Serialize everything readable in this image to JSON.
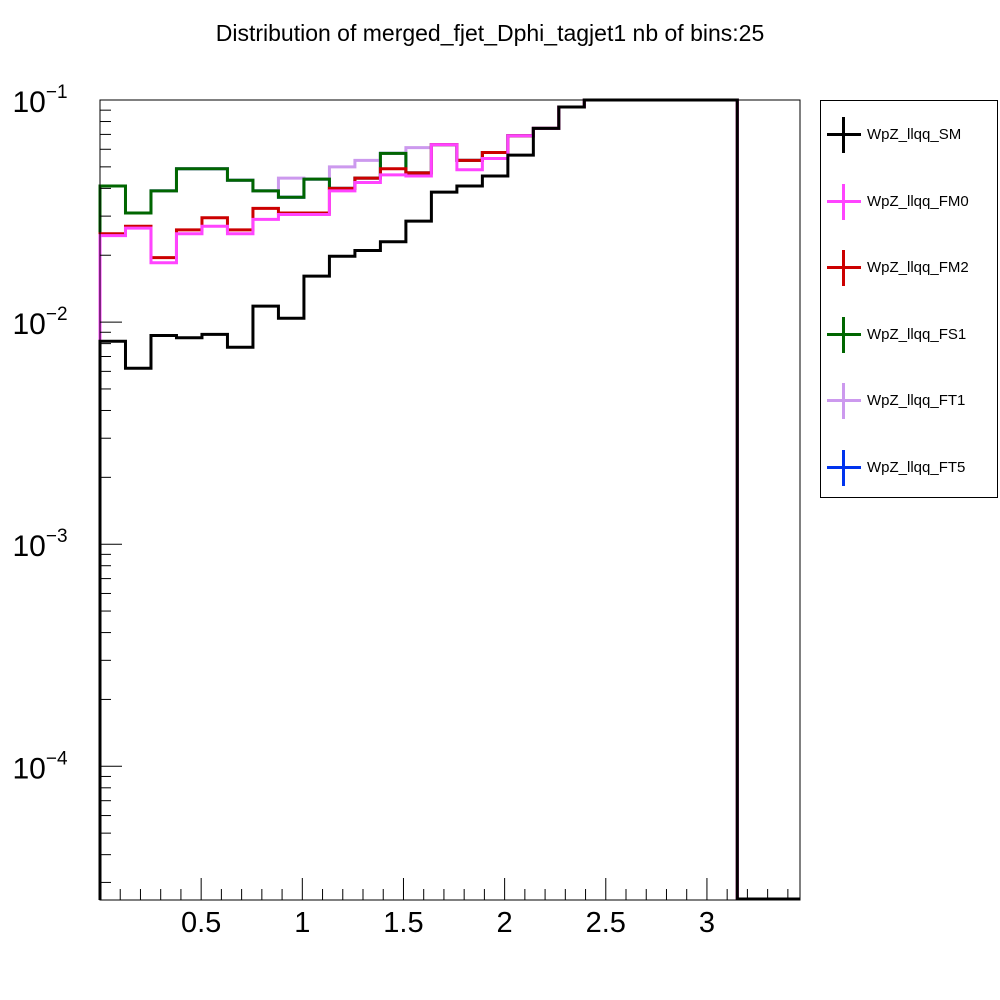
{
  "chart_data": {
    "type": "line",
    "title": "Distribution of merged_fjet_Dphi_tagjet1 nb of bins:25",
    "xlabel": "",
    "ylabel": "",
    "x_range": [
      0.0,
      3.46
    ],
    "y_range": [
      2.5e-05,
      0.1
    ],
    "y_scale": "log",
    "x_tick_labels": [
      "0.5",
      "1",
      "1.5",
      "2",
      "2.5",
      "3"
    ],
    "x_tick_values": [
      0.5,
      1.0,
      1.5,
      2.0,
      2.5,
      3.0
    ],
    "y_tick_labels": [
      {
        "base": "10",
        "exp": "−1",
        "value": 0.1
      },
      {
        "base": "10",
        "exp": "−2",
        "value": 0.01
      },
      {
        "base": "10",
        "exp": "−3",
        "value": 0.001
      },
      {
        "base": "10",
        "exp": "−4",
        "value": 0.0001
      }
    ],
    "bin_edges": [
      0.0,
      0.126,
      0.252,
      0.378,
      0.504,
      0.63,
      0.756,
      0.882,
      1.008,
      1.134,
      1.26,
      1.386,
      1.512,
      1.638,
      1.764,
      1.89,
      2.016,
      2.142,
      2.268,
      2.394,
      2.52,
      2.646,
      2.772,
      2.898,
      3.024,
      3.15
    ],
    "series": [
      {
        "name": "WpZ_llqq_SM",
        "color": "#000000",
        "values": [
          0.0082,
          0.0062,
          0.0087,
          0.0085,
          0.0088,
          0.0077,
          0.0118,
          0.0104,
          0.0161,
          0.0198,
          0.021,
          0.023,
          0.0285,
          0.0385,
          0.041,
          0.0455,
          0.0565,
          0.0745,
          0.093,
          0.1,
          0.1,
          0.1,
          0.1,
          0.1,
          0.1
        ]
      },
      {
        "name": "WpZ_llqq_FM0",
        "color": "#ff44ff",
        "values": [
          0.0245,
          0.0265,
          0.0185,
          0.025,
          0.027,
          0.025,
          0.029,
          0.0305,
          0.0305,
          0.039,
          0.0425,
          0.046,
          0.0455,
          0.063,
          0.0485,
          0.0545,
          0.069,
          0.0745,
          0.093,
          0.1,
          0.1,
          0.1,
          0.1,
          0.1,
          0.1
        ]
      },
      {
        "name": "WpZ_llqq_FM2",
        "color": "#cc0000",
        "values": [
          0.025,
          0.027,
          0.0195,
          0.026,
          0.0295,
          0.026,
          0.0325,
          0.031,
          0.031,
          0.04,
          0.0445,
          0.049,
          0.047,
          0.063,
          0.0535,
          0.058,
          0.069,
          0.0745,
          0.093,
          0.1,
          0.1,
          0.1,
          0.1,
          0.1,
          0.1
        ]
      },
      {
        "name": "WpZ_llqq_FS1",
        "color": "#006600",
        "values": [
          0.041,
          0.031,
          0.039,
          0.049,
          0.049,
          0.0435,
          0.039,
          0.0365,
          0.044,
          0.04,
          0.0445,
          0.0575,
          0.047,
          0.063,
          0.0535,
          0.058,
          0.069,
          0.0745,
          0.093,
          0.1,
          0.1,
          0.1,
          0.1,
          0.1,
          0.1
        ]
      },
      {
        "name": "WpZ_llqq_FT1",
        "color": "#cc99ee",
        "values": [
          0.041,
          0.031,
          0.039,
          0.049,
          0.049,
          0.0435,
          0.039,
          0.0445,
          0.044,
          0.05,
          0.0535,
          0.0575,
          0.061,
          0.063,
          0.0535,
          0.058,
          0.069,
          0.0745,
          0.093,
          0.1,
          0.1,
          0.1,
          0.1,
          0.1,
          0.1
        ]
      },
      {
        "name": "WpZ_llqq_FT5",
        "color": "#0033ee",
        "values": [
          0.041,
          0.031,
          0.039,
          0.049,
          0.049,
          0.0435,
          0.039,
          0.0365,
          0.044,
          0.04,
          0.0445,
          0.0575,
          0.047,
          0.063,
          0.0535,
          0.058,
          0.069,
          0.0745,
          0.093,
          0.1,
          0.1,
          0.1,
          0.1,
          0.1,
          0.1
        ]
      }
    ],
    "grid": false,
    "legend_position": "right"
  }
}
